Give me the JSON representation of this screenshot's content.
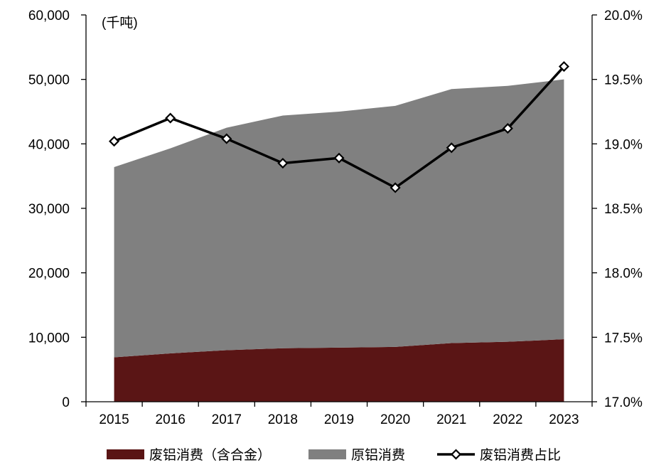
{
  "chart_data": {
    "type": "area",
    "unit_label": "(千吨)",
    "categories": [
      "2015",
      "2016",
      "2017",
      "2018",
      "2019",
      "2020",
      "2021",
      "2022",
      "2023"
    ],
    "series": [
      {
        "name": "废铝消费（含合金）",
        "kind": "stacked-area",
        "axis": "left",
        "color": "#5a1515",
        "values": [
          6900,
          7500,
          8000,
          8300,
          8400,
          8500,
          9100,
          9300,
          9700
        ]
      },
      {
        "name": "原铝消费",
        "kind": "stacked-area",
        "axis": "left",
        "color": "#808080",
        "values": [
          29500,
          31800,
          34500,
          36100,
          36600,
          37400,
          39400,
          39700,
          40300
        ]
      },
      {
        "name": "废铝消费占比",
        "kind": "line",
        "axis": "right",
        "color": "#000000",
        "values": [
          19.02,
          19.2,
          19.04,
          18.85,
          18.89,
          18.66,
          18.97,
          19.12,
          19.6
        ]
      }
    ],
    "y_left": {
      "min": 0,
      "max": 60000,
      "ticks": [
        0,
        10000,
        20000,
        30000,
        40000,
        50000,
        60000
      ],
      "tick_labels": [
        "0",
        "10,000",
        "20,000",
        "30,000",
        "40,000",
        "50,000",
        "60,000"
      ]
    },
    "y_right": {
      "min": 17.0,
      "max": 20.0,
      "ticks": [
        17.0,
        17.5,
        18.0,
        18.5,
        19.0,
        19.5,
        20.0
      ],
      "tick_labels": [
        "17.0%",
        "17.5%",
        "18.0%",
        "18.5%",
        "19.0%",
        "19.5%",
        "20.0%"
      ]
    },
    "grid": false,
    "legend_position": "bottom"
  }
}
